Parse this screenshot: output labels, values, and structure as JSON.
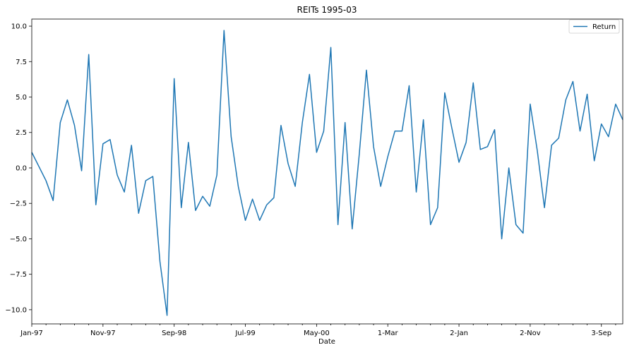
{
  "chart_data": {
    "type": "line",
    "title": "REITs 1995-03",
    "xlabel": "Date",
    "ylabel": "",
    "x_tick_labels": [
      "Jan-97",
      "Nov-97",
      "Sep-98",
      "Jul-99",
      "May-00",
      "1-Mar",
      "2-Jan",
      "2-Nov",
      "3-Sep"
    ],
    "x_tick_index": [
      0,
      10,
      20,
      30,
      40,
      50,
      60,
      70,
      80
    ],
    "ylim": [
      -11,
      10.5
    ],
    "y_ticks": [
      10.0,
      7.5,
      5.0,
      2.5,
      0.0,
      -2.5,
      -5.0,
      -7.5,
      -10.0
    ],
    "y_tick_labels": [
      "10.0",
      "7.5",
      "5.0",
      "2.5",
      "0.0",
      "−2.5",
      "−5.0",
      "−7.5",
      "−10.0"
    ],
    "grid": false,
    "legend": {
      "position": "top-right"
    },
    "color": "#1f77b4",
    "series": [
      {
        "name": "Return",
        "values": [
          1.1,
          0.1,
          -0.9,
          -2.3,
          3.2,
          4.8,
          3.0,
          -0.2,
          8.0,
          -2.6,
          1.7,
          2.0,
          -0.5,
          -1.7,
          1.6,
          -3.2,
          -0.9,
          -0.6,
          -6.6,
          -10.4,
          6.3,
          -2.8,
          1.8,
          -3.0,
          -2.0,
          -2.7,
          -0.5,
          9.7,
          2.2,
          -1.3,
          -3.7,
          -2.2,
          -3.7,
          -2.6,
          -2.1,
          3.0,
          0.3,
          -1.3,
          3.2,
          6.6,
          1.1,
          2.6,
          8.5,
          -4.0,
          3.2,
          -4.3,
          1.0,
          6.9,
          1.5,
          -1.3,
          0.8,
          2.6,
          2.6,
          5.8,
          -1.7,
          3.4,
          -4.0,
          -2.8,
          5.3,
          2.8,
          0.4,
          1.8,
          6.0,
          1.3,
          1.5,
          2.7,
          -5.0,
          0.0,
          -4.0,
          -4.6,
          4.5,
          1.2,
          -2.8,
          1.6,
          2.1,
          4.8,
          6.1,
          2.6,
          5.2,
          0.5,
          3.1,
          2.2,
          4.5,
          3.4
        ]
      }
    ]
  }
}
